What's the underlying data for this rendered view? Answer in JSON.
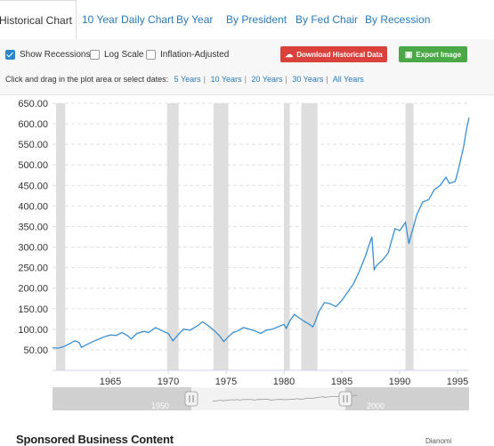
{
  "tabs": [
    {
      "label": "Historical Chart",
      "active": true
    },
    {
      "label": "10 Year Daily Chart"
    },
    {
      "label": "By Year"
    },
    {
      "label": "By President"
    },
    {
      "label": "By Fed Chair"
    },
    {
      "label": "By Recession"
    }
  ],
  "controls": {
    "show_recessions": {
      "label": "Show Recessions",
      "checked": true
    },
    "log_scale": {
      "label": "Log Scale",
      "checked": false
    },
    "inflation_adjusted": {
      "label": "Inflation-Adjusted",
      "checked": false
    },
    "download_label": "Download Historical Data",
    "export_label": "Export Image",
    "dates_prompt": "Click and drag in the plot area or select dates:",
    "date_ranges": [
      "5 Years",
      "10 Years",
      "20 Years",
      "30 Years",
      "All Years"
    ],
    "colors": {
      "download": "#d9413b",
      "export": "#4aa846",
      "link": "#2a7ab8"
    }
  },
  "chart_data": {
    "type": "line",
    "series": [
      {
        "color": "#3a8fd0",
        "points": [
          [
            1960.0,
            55
          ],
          [
            1960.5,
            54
          ],
          [
            1961.0,
            58
          ],
          [
            1961.5,
            65
          ],
          [
            1961.9,
            72
          ],
          [
            1962.3,
            68
          ],
          [
            1962.5,
            56
          ],
          [
            1962.9,
            62
          ],
          [
            1963.5,
            70
          ],
          [
            1964.0,
            76
          ],
          [
            1964.5,
            82
          ],
          [
            1965.0,
            86
          ],
          [
            1965.5,
            85
          ],
          [
            1966.0,
            92
          ],
          [
            1966.5,
            84
          ],
          [
            1966.8,
            76
          ],
          [
            1967.3,
            90
          ],
          [
            1967.9,
            95
          ],
          [
            1968.3,
            92
          ],
          [
            1968.9,
            104
          ],
          [
            1969.5,
            96
          ],
          [
            1970.0,
            90
          ],
          [
            1970.4,
            72
          ],
          [
            1970.9,
            88
          ],
          [
            1971.3,
            100
          ],
          [
            1971.9,
            98
          ],
          [
            1972.5,
            108
          ],
          [
            1972.95,
            118
          ],
          [
            1973.5,
            108
          ],
          [
            1974.0,
            96
          ],
          [
            1974.5,
            82
          ],
          [
            1974.8,
            70
          ],
          [
            1975.2,
            82
          ],
          [
            1975.6,
            92
          ],
          [
            1976.0,
            96
          ],
          [
            1976.5,
            104
          ],
          [
            1977.0,
            100
          ],
          [
            1977.5,
            96
          ],
          [
            1978.0,
            90
          ],
          [
            1978.5,
            98
          ],
          [
            1979.0,
            100
          ],
          [
            1979.5,
            106
          ],
          [
            1980.0,
            112
          ],
          [
            1980.2,
            102
          ],
          [
            1980.5,
            120
          ],
          [
            1980.9,
            136
          ],
          [
            1981.2,
            130
          ],
          [
            1981.7,
            120
          ],
          [
            1982.2,
            112
          ],
          [
            1982.5,
            106
          ],
          [
            1982.7,
            118
          ],
          [
            1983.0,
            142
          ],
          [
            1983.5,
            165
          ],
          [
            1984.0,
            162
          ],
          [
            1984.5,
            155
          ],
          [
            1985.0,
            170
          ],
          [
            1985.5,
            190
          ],
          [
            1986.0,
            210
          ],
          [
            1986.5,
            240
          ],
          [
            1987.0,
            275
          ],
          [
            1987.6,
            325
          ],
          [
            1987.8,
            245
          ],
          [
            1988.0,
            255
          ],
          [
            1988.5,
            268
          ],
          [
            1989.0,
            285
          ],
          [
            1989.6,
            345
          ],
          [
            1990.0,
            340
          ],
          [
            1990.5,
            360
          ],
          [
            1990.8,
            308
          ],
          [
            1991.0,
            330
          ],
          [
            1991.5,
            380
          ],
          [
            1992.0,
            410
          ],
          [
            1992.5,
            415
          ],
          [
            1993.0,
            440
          ],
          [
            1993.5,
            450
          ],
          [
            1994.0,
            470
          ],
          [
            1994.3,
            455
          ],
          [
            1994.8,
            460
          ],
          [
            1995.0,
            480
          ],
          [
            1995.5,
            540
          ],
          [
            1995.8,
            590
          ],
          [
            1996.0,
            615
          ]
        ]
      }
    ],
    "yticks": [
      "650.00",
      "600.00",
      "550.00",
      "500.00",
      "450.00",
      "400.00",
      "350.00",
      "300.00",
      "250.00",
      "200.00",
      "150.00",
      "100.00",
      "50.00"
    ],
    "xticks": [
      "1965",
      "1970",
      "1975",
      "1980",
      "1985",
      "1990",
      "1995"
    ],
    "ylim": [
      0,
      650
    ],
    "xlim": [
      1960,
      1996
    ],
    "recessions": [
      [
        1960.3,
        1961.1
      ],
      [
        1969.9,
        1970.9
      ],
      [
        1973.9,
        1975.2
      ],
      [
        1980.0,
        1980.5
      ],
      [
        1981.5,
        1982.9
      ],
      [
        1990.5,
        1991.2
      ]
    ],
    "recession_color": "#dedede",
    "navigator_labels": [
      "1950",
      "2000"
    ],
    "grid": true
  },
  "footer": {
    "title": "Sponsored Business Content",
    "brand": "Dianomi"
  }
}
